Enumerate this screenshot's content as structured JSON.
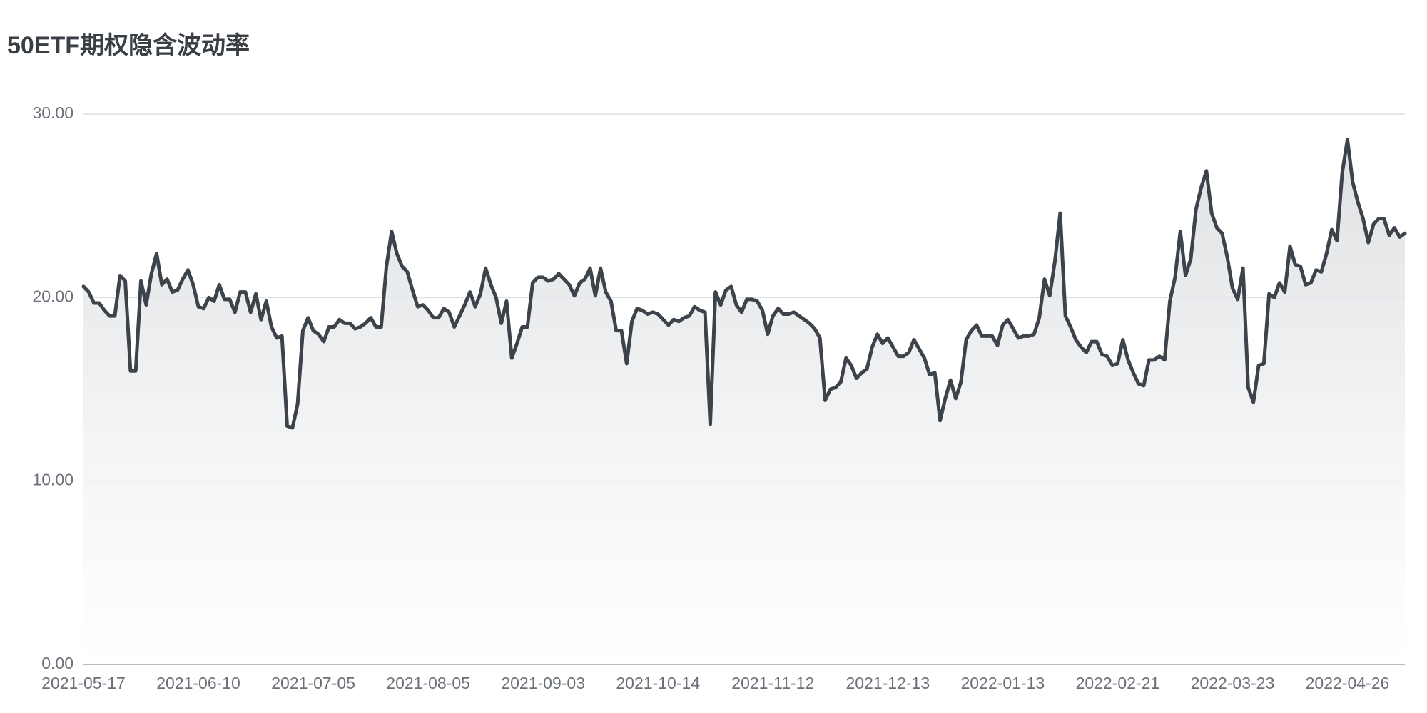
{
  "chart_data": {
    "type": "area",
    "title": "50ETF期权隐含波动率",
    "categories": [
      "2021-05-17",
      null,
      null,
      null,
      null,
      null,
      null,
      null,
      null,
      null,
      null,
      null,
      null,
      null,
      null,
      null,
      null,
      null,
      null,
      null,
      null,
      null,
      "2021-06-10",
      null,
      null,
      null,
      null,
      null,
      null,
      null,
      null,
      null,
      null,
      null,
      null,
      null,
      null,
      null,
      null,
      null,
      null,
      null,
      null,
      null,
      "2021-07-05",
      null,
      null,
      null,
      null,
      null,
      null,
      null,
      null,
      null,
      null,
      null,
      null,
      null,
      null,
      null,
      null,
      null,
      null,
      null,
      null,
      null,
      "2021-08-05",
      null,
      null,
      null,
      null,
      null,
      null,
      null,
      null,
      null,
      null,
      null,
      null,
      null,
      null,
      null,
      null,
      null,
      null,
      null,
      null,
      null,
      "2021-09-03",
      null,
      null,
      null,
      null,
      null,
      null,
      null,
      null,
      null,
      null,
      null,
      null,
      null,
      null,
      null,
      null,
      null,
      null,
      null,
      null,
      null,
      "2021-10-14",
      null,
      null,
      null,
      null,
      null,
      null,
      null,
      null,
      null,
      null,
      null,
      null,
      null,
      null,
      null,
      null,
      null,
      null,
      null,
      null,
      null,
      "2021-11-12",
      null,
      null,
      null,
      null,
      null,
      null,
      null,
      null,
      null,
      null,
      null,
      null,
      null,
      null,
      null,
      null,
      null,
      null,
      null,
      null,
      null,
      "2021-12-13",
      null,
      null,
      null,
      null,
      null,
      null,
      null,
      null,
      null,
      null,
      null,
      null,
      null,
      null,
      null,
      null,
      null,
      null,
      null,
      null,
      null,
      "2022-01-13",
      null,
      null,
      null,
      null,
      null,
      null,
      null,
      null,
      null,
      null,
      null,
      null,
      null,
      null,
      null,
      null,
      null,
      null,
      null,
      null,
      null,
      "2022-02-21",
      null,
      null,
      null,
      null,
      null,
      null,
      null,
      null,
      null,
      null,
      null,
      null,
      null,
      null,
      null,
      null,
      null,
      null,
      null,
      null,
      null,
      "2022-03-23",
      null,
      null,
      null,
      null,
      null,
      null,
      null,
      null,
      null,
      null,
      null,
      null,
      null,
      null,
      null,
      null,
      null,
      null,
      null,
      null,
      null,
      "2022-04-26",
      null,
      null,
      null,
      null,
      null,
      null,
      null,
      null,
      null,
      null,
      null
    ],
    "values": [
      20.6,
      20.3,
      19.7,
      19.7,
      19.3,
      19.0,
      19.0,
      21.2,
      20.9,
      16.0,
      16.0,
      20.9,
      19.6,
      21.3,
      22.4,
      20.7,
      21.0,
      20.3,
      20.4,
      21.0,
      21.5,
      20.7,
      19.5,
      19.4,
      20.0,
      19.8,
      20.7,
      19.9,
      19.9,
      19.2,
      20.3,
      20.3,
      19.2,
      20.2,
      18.8,
      19.8,
      18.4,
      17.8,
      17.9,
      13.0,
      12.9,
      14.2,
      18.2,
      18.9,
      18.2,
      18.0,
      17.6,
      18.4,
      18.4,
      18.8,
      18.6,
      18.6,
      18.3,
      18.4,
      18.6,
      18.9,
      18.4,
      18.4,
      21.7,
      23.6,
      22.4,
      21.7,
      21.4,
      20.4,
      19.5,
      19.6,
      19.3,
      18.9,
      18.9,
      19.4,
      19.2,
      18.4,
      19.0,
      19.6,
      20.3,
      19.5,
      20.2,
      21.6,
      20.7,
      20.0,
      18.6,
      19.8,
      16.7,
      17.5,
      18.4,
      18.4,
      20.8,
      21.1,
      21.1,
      20.9,
      21.0,
      21.3,
      21.0,
      20.7,
      20.1,
      20.8,
      21.0,
      21.6,
      20.1,
      21.6,
      20.3,
      19.8,
      18.2,
      18.2,
      16.4,
      18.7,
      19.4,
      19.3,
      19.1,
      19.2,
      19.1,
      18.8,
      18.5,
      18.8,
      18.7,
      18.9,
      19.0,
      19.5,
      19.3,
      19.2,
      13.1,
      20.3,
      19.6,
      20.4,
      20.6,
      19.6,
      19.2,
      19.9,
      19.9,
      19.8,
      19.3,
      18.0,
      19.0,
      19.4,
      19.1,
      19.1,
      19.2,
      19.0,
      18.8,
      18.6,
      18.3,
      17.8,
      14.4,
      15.0,
      15.1,
      15.4,
      16.7,
      16.3,
      15.6,
      15.9,
      16.1,
      17.3,
      18.0,
      17.5,
      17.8,
      17.3,
      16.8,
      16.8,
      17.0,
      17.7,
      17.2,
      16.7,
      15.8,
      15.9,
      13.3,
      14.5,
      15.5,
      14.5,
      15.4,
      17.7,
      18.2,
      18.5,
      17.9,
      17.9,
      17.9,
      17.4,
      18.5,
      18.8,
      18.3,
      17.8,
      17.9,
      17.9,
      18.0,
      18.9,
      21.0,
      20.1,
      22.0,
      24.6,
      19.0,
      18.4,
      17.7,
      17.3,
      17.0,
      17.6,
      17.6,
      16.9,
      16.8,
      16.3,
      16.4,
      17.7,
      16.6,
      15.9,
      15.3,
      15.2,
      16.6,
      16.6,
      16.8,
      16.6,
      19.8,
      21.1,
      23.6,
      21.2,
      22.1,
      24.8,
      26.0,
      26.9,
      24.6,
      23.8,
      23.5,
      22.2,
      20.5,
      19.9,
      21.6,
      15.1,
      14.3,
      16.3,
      16.4,
      20.2,
      20.0,
      20.8,
      20.3,
      22.8,
      21.8,
      21.7,
      20.7,
      20.8,
      21.5,
      21.4,
      22.4,
      23.7,
      23.1,
      26.8,
      28.6,
      26.3,
      25.2,
      24.3,
      23.0,
      24.0,
      24.3,
      24.3,
      23.4,
      23.8,
      23.3,
      23.5
    ],
    "color": "#3d434b",
    "ylim": [
      0,
      30
    ],
    "yticks": [
      {
        "value": 0,
        "label": "0.00"
      },
      {
        "value": 10,
        "label": "10.00"
      },
      {
        "value": 20,
        "label": "20.00"
      },
      {
        "value": 30,
        "label": "30.00"
      }
    ],
    "grid": true
  }
}
